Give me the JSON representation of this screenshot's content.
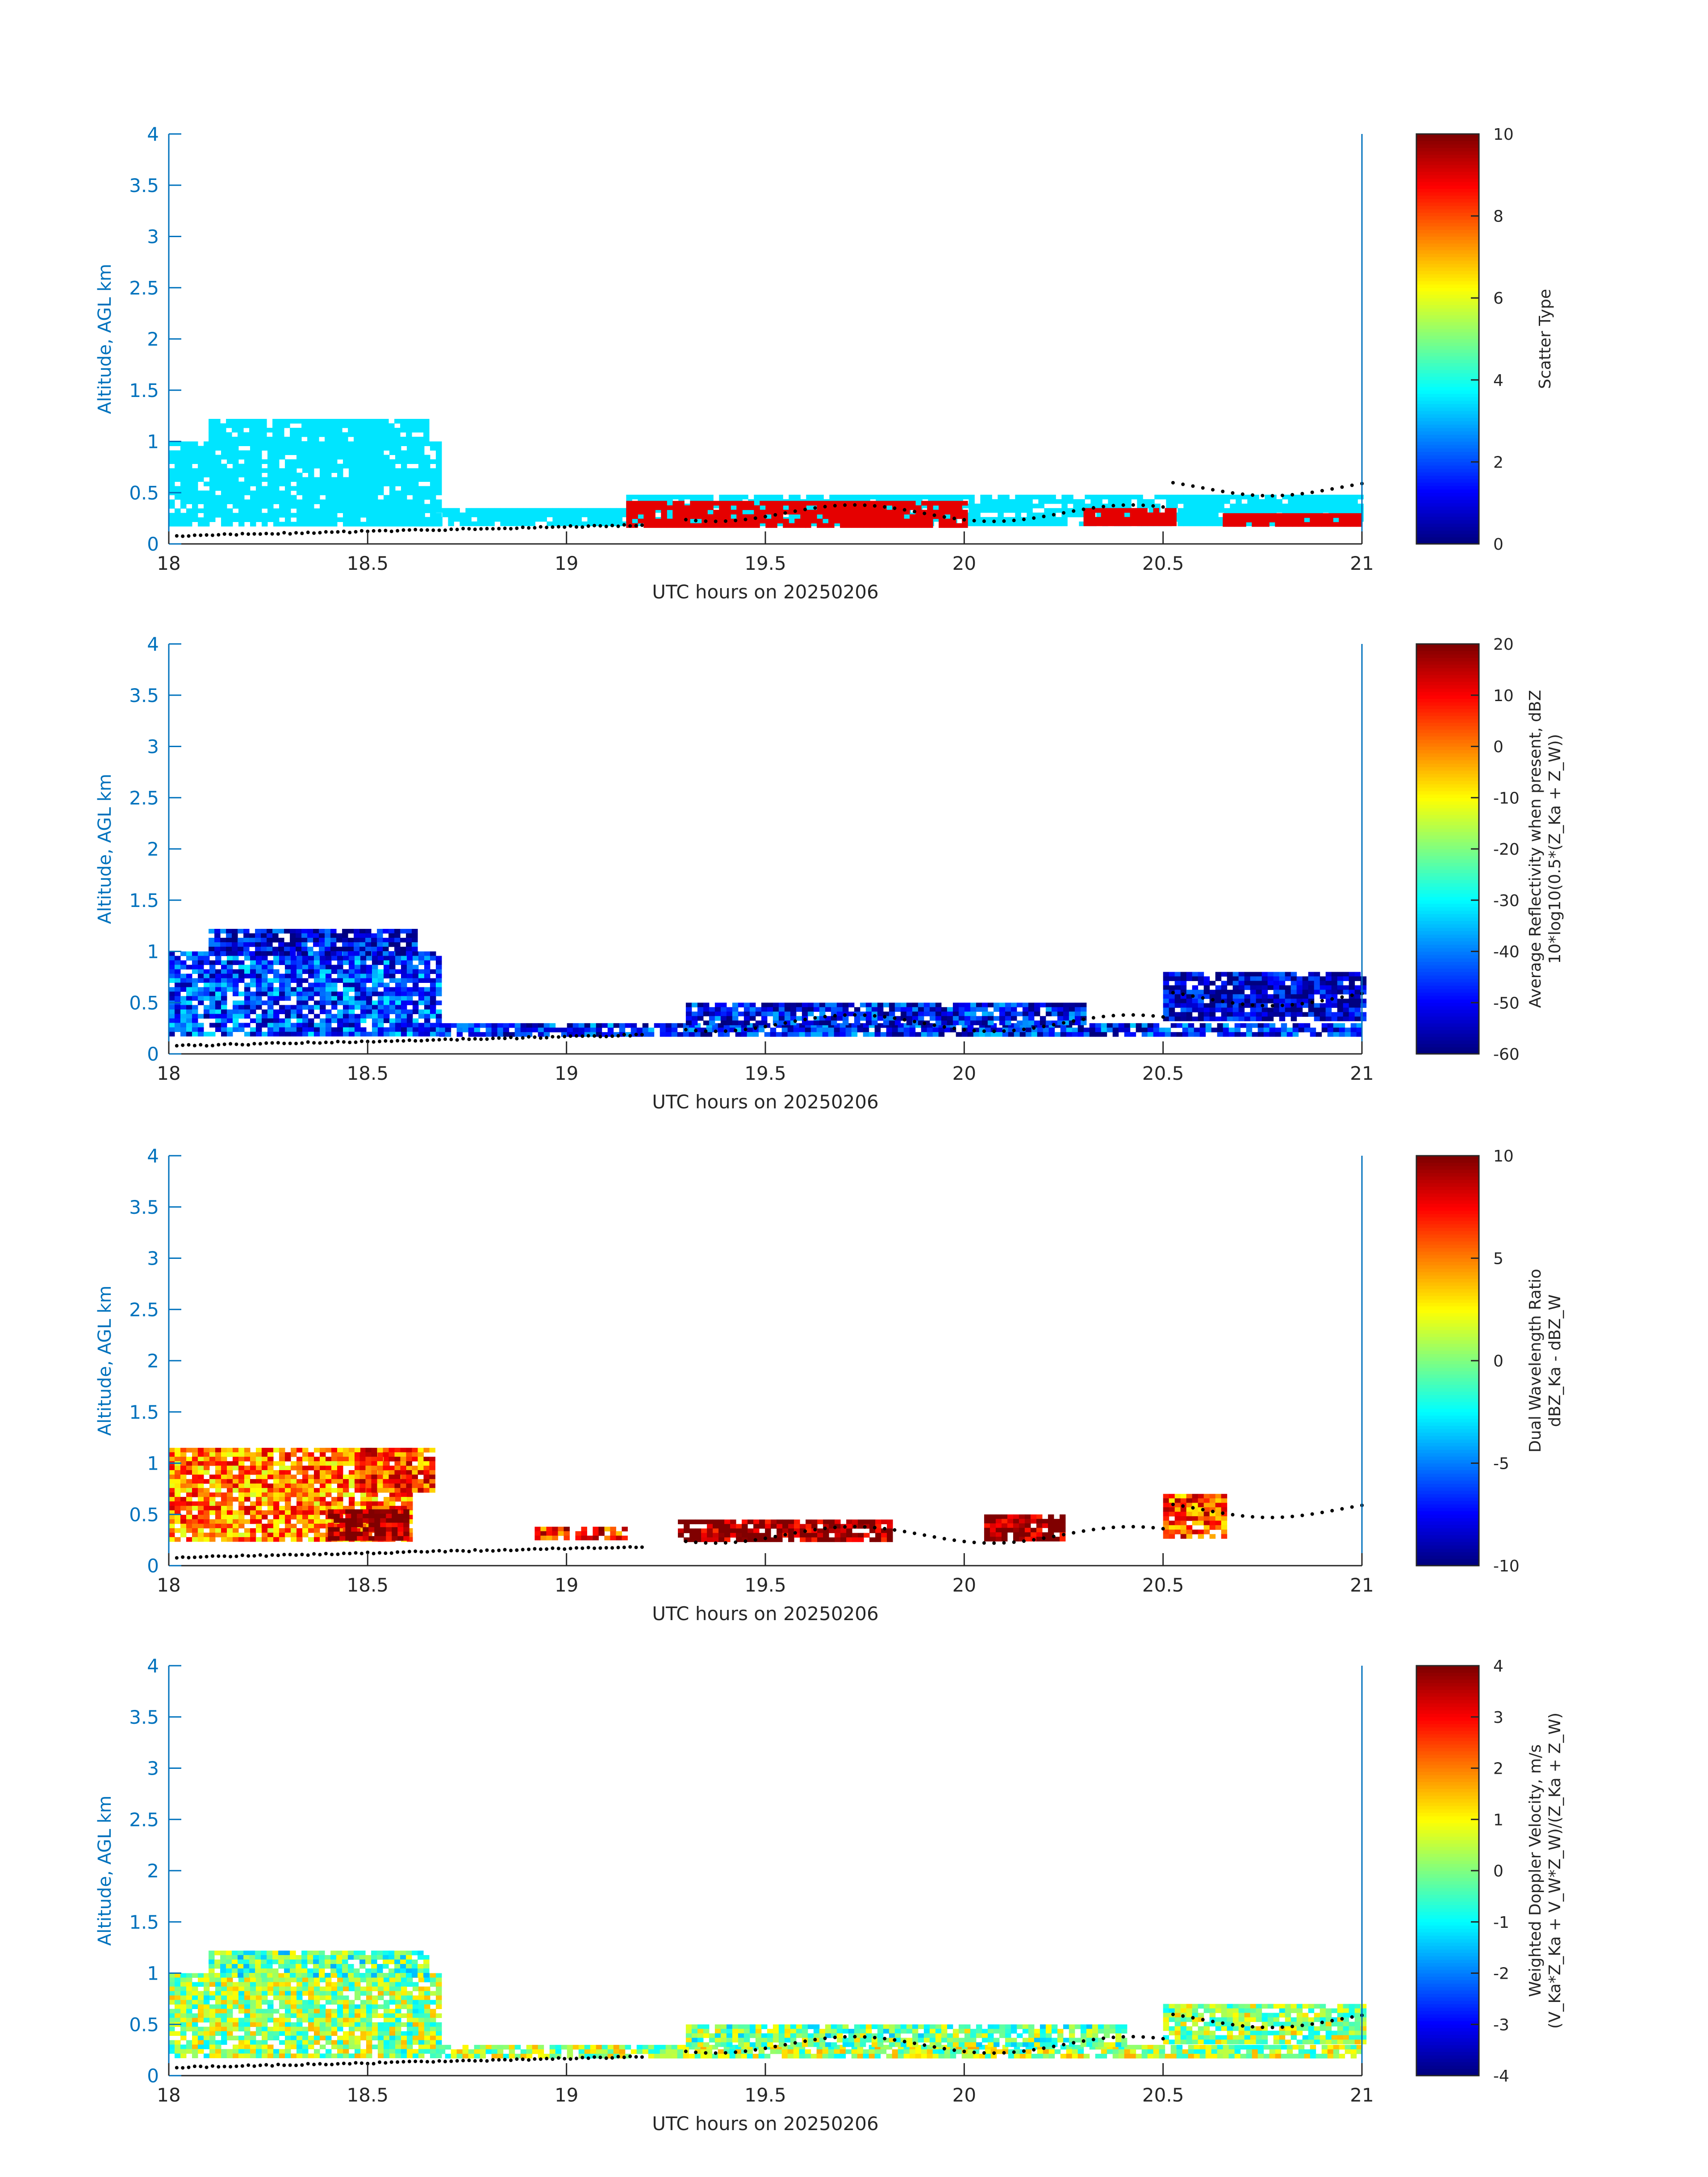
{
  "figure": {
    "x_range": [
      18,
      21
    ],
    "y_range": [
      0,
      4
    ],
    "x_ticks": [
      "18",
      "18.5",
      "19",
      "19.5",
      "20",
      "20.5",
      "21"
    ],
    "y_ticks": [
      "0",
      "0.5",
      "1",
      "1.5",
      "2",
      "2.5",
      "3",
      "3.5",
      "4"
    ]
  },
  "chart_data": [
    {
      "type": "heatmap",
      "title": "",
      "xlabel": "UTC hours on 20250206",
      "ylabel": "Altitude, AGL km",
      "xlim": [
        18,
        21
      ],
      "ylim": [
        0,
        4
      ],
      "grid": false,
      "colorbar": {
        "label_lines": [
          "Scatter Type"
        ],
        "range": [
          0,
          10
        ],
        "ticks": [
          "0",
          "2",
          "4",
          "6",
          "8",
          "10"
        ],
        "colormap": "jet"
      },
      "regions": [
        {
          "x0": 18.0,
          "x1": 18.68,
          "y0": 0.18,
          "y1": 1.0,
          "value": 3.5,
          "note": "cloud layer"
        },
        {
          "x0": 18.1,
          "x1": 18.65,
          "y0": 1.0,
          "y1": 1.22,
          "value": 3.5
        },
        {
          "x0": 18.6,
          "x1": 19.15,
          "y0": 0.18,
          "y1": 0.35,
          "value": 3.5
        },
        {
          "x0": 19.15,
          "x1": 21.0,
          "y0": 0.18,
          "y1": 0.48,
          "value": 3.5
        },
        {
          "x0": 19.15,
          "x1": 19.6,
          "y0": 0.18,
          "y1": 0.42,
          "value": 9.0
        },
        {
          "x0": 19.6,
          "x1": 20.0,
          "y0": 0.18,
          "y1": 0.42,
          "value": 9.0
        },
        {
          "x0": 20.3,
          "x1": 20.52,
          "y0": 0.18,
          "y1": 0.35,
          "value": 9.0
        },
        {
          "x0": 20.65,
          "x1": 21.0,
          "y0": 0.18,
          "y1": 0.3,
          "value": 9.0
        }
      ]
    },
    {
      "type": "heatmap",
      "title": "",
      "xlabel": "UTC hours on 20250206",
      "ylabel": "Altitude, AGL km",
      "xlim": [
        18,
        21
      ],
      "ylim": [
        0,
        4
      ],
      "grid": false,
      "colorbar": {
        "label_lines": [
          "Average Reflectivity when present, dBZ",
          "10*log10(0.5*(Z_Ka + Z_W))"
        ],
        "range": [
          -60,
          20
        ],
        "ticks": [
          "-60",
          "-50",
          "-40",
          "-30",
          "-20",
          "-10",
          "0",
          "10",
          "20"
        ],
        "colormap": "jet"
      },
      "regions": [
        {
          "x0": 18.0,
          "x1": 18.68,
          "y0": 0.18,
          "y1": 1.0,
          "value": -45
        },
        {
          "x0": 18.1,
          "x1": 18.62,
          "y0": 1.0,
          "y1": 1.22,
          "value": -52
        },
        {
          "x0": 18.68,
          "x1": 21.0,
          "y0": 0.18,
          "y1": 0.3,
          "value": -48
        },
        {
          "x0": 19.3,
          "x1": 20.3,
          "y0": 0.3,
          "y1": 0.5,
          "value": -50
        },
        {
          "x0": 20.5,
          "x1": 21.0,
          "y0": 0.35,
          "y1": 0.8,
          "value": -55
        }
      ]
    },
    {
      "type": "heatmap",
      "title": "",
      "xlabel": "UTC hours on 20250206",
      "ylabel": "Altitude, AGL km",
      "xlim": [
        18,
        21
      ],
      "ylim": [
        0,
        4
      ],
      "grid": false,
      "colorbar": {
        "label_lines": [
          "Dual Wavelength Ratio",
          "dBZ_Ka - dBZ_W"
        ],
        "range": [
          -10,
          10
        ],
        "ticks": [
          "-10",
          "-5",
          "0",
          "5",
          "10"
        ],
        "colormap": "jet"
      },
      "regions": [
        {
          "x0": 18.0,
          "x1": 18.6,
          "y0": 0.25,
          "y1": 1.15,
          "value": 5
        },
        {
          "x0": 18.4,
          "x1": 18.6,
          "y0": 0.25,
          "y1": 0.55,
          "value": 10
        },
        {
          "x0": 18.48,
          "x1": 18.66,
          "y0": 0.75,
          "y1": 1.15,
          "value": 6
        },
        {
          "x0": 18.92,
          "x1": 19.15,
          "y0": 0.25,
          "y1": 0.38,
          "value": 7
        },
        {
          "x0": 19.28,
          "x1": 19.82,
          "y0": 0.25,
          "y1": 0.45,
          "value": 10
        },
        {
          "x0": 20.05,
          "x1": 20.25,
          "y0": 0.25,
          "y1": 0.5,
          "value": 10
        },
        {
          "x0": 20.5,
          "x1": 20.65,
          "y0": 0.3,
          "y1": 0.7,
          "value": 6
        }
      ]
    },
    {
      "type": "heatmap",
      "title": "",
      "xlabel": "UTC hours on 20250206",
      "ylabel": "Altitude, AGL km",
      "xlim": [
        18,
        21
      ],
      "ylim": [
        0,
        4
      ],
      "grid": false,
      "colorbar": {
        "label_lines": [
          "Weighted Doppler Velocity, m/s",
          "(V_Ka*Z_Ka + V_W*Z_W)/(Z_Ka + Z_W)"
        ],
        "range": [
          -4,
          4
        ],
        "ticks": [
          "-4",
          "-3",
          "-2",
          "-1",
          "0",
          "1",
          "2",
          "3",
          "4"
        ],
        "colormap": "jet"
      },
      "regions": [
        {
          "x0": 18.0,
          "x1": 18.68,
          "y0": 0.18,
          "y1": 1.0,
          "value": 0.2
        },
        {
          "x0": 18.1,
          "x1": 18.65,
          "y0": 1.0,
          "y1": 1.22,
          "value": -0.3
        },
        {
          "x0": 18.68,
          "x1": 21.0,
          "y0": 0.18,
          "y1": 0.3,
          "value": 0.3
        },
        {
          "x0": 19.3,
          "x1": 20.4,
          "y0": 0.3,
          "y1": 0.5,
          "value": -0.1
        },
        {
          "x0": 20.5,
          "x1": 21.0,
          "y0": 0.35,
          "y1": 0.7,
          "value": 0.2
        }
      ]
    }
  ]
}
